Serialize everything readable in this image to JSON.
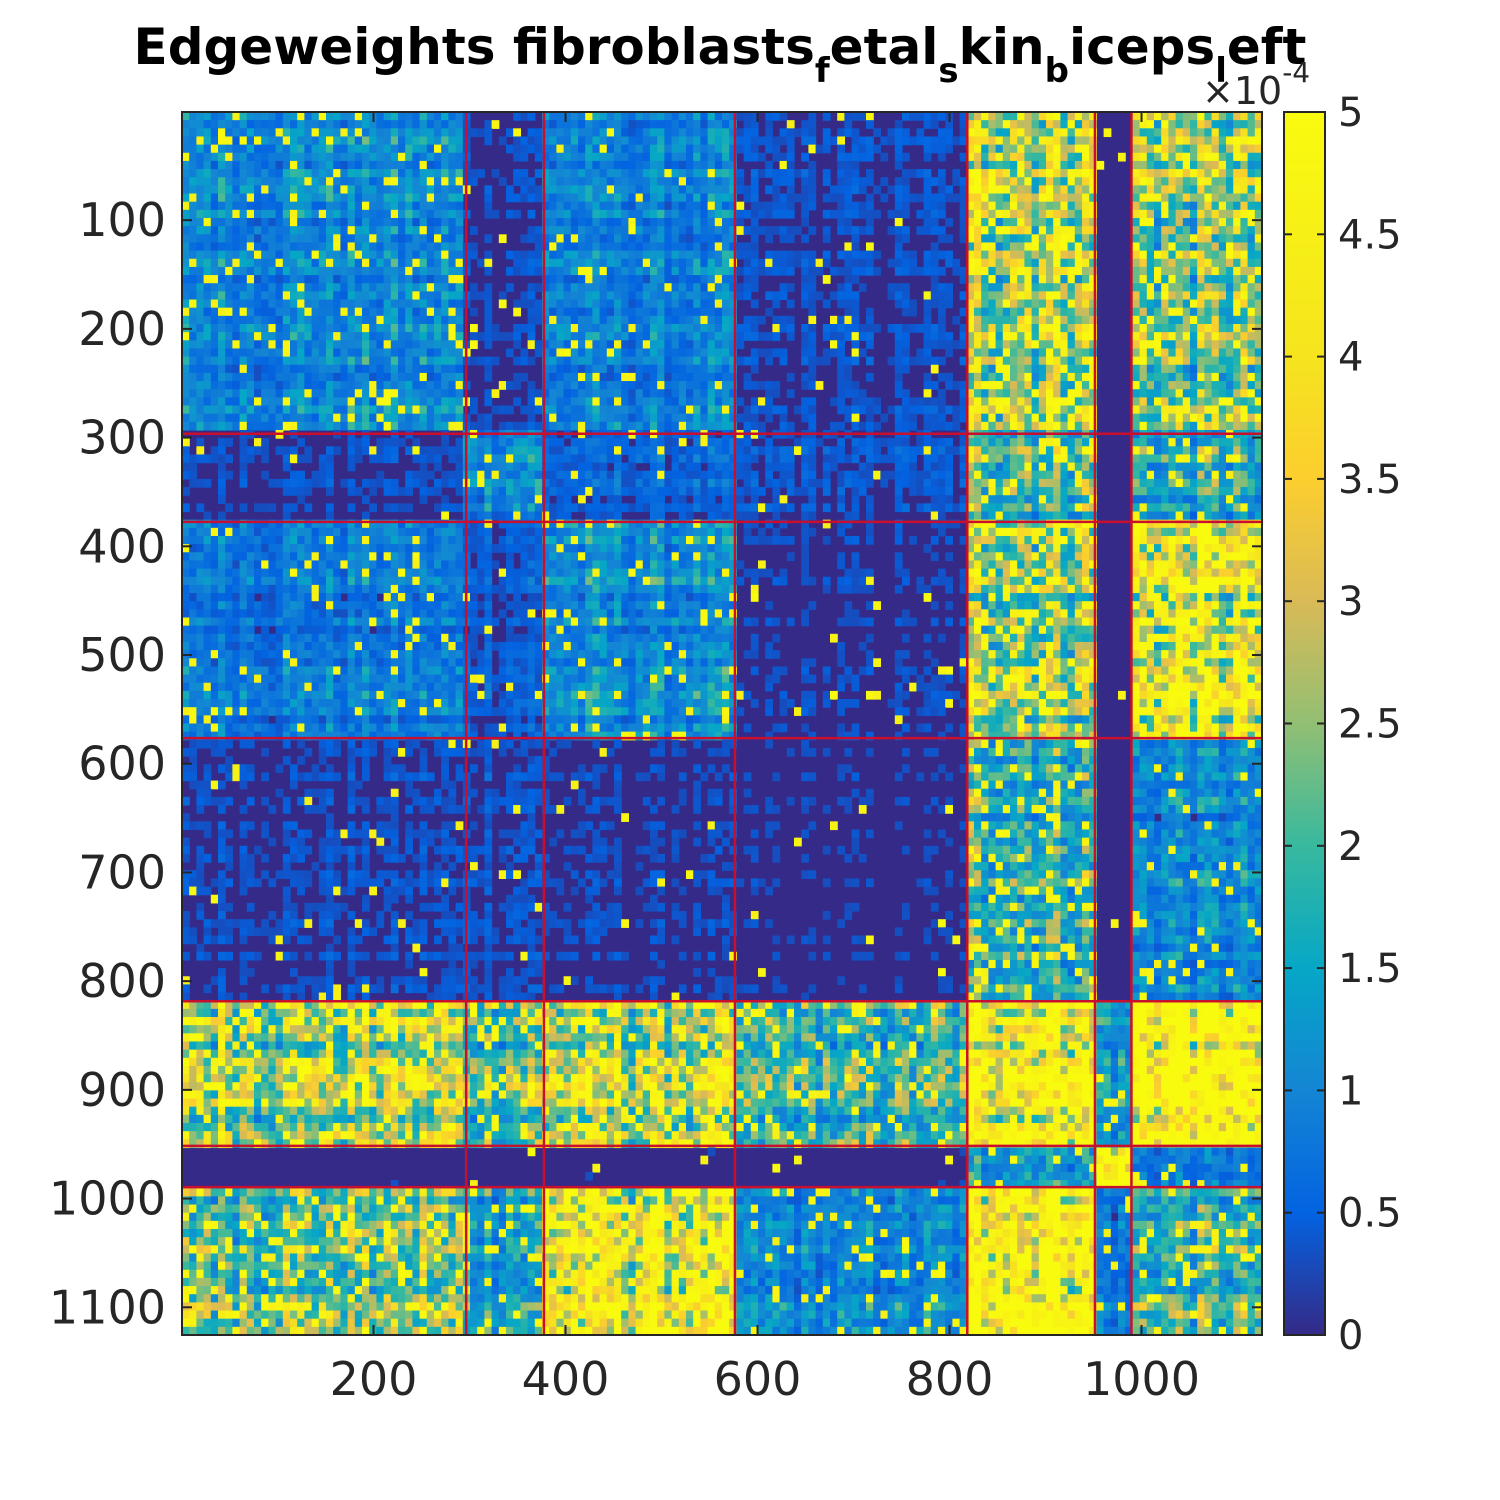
{
  "chart_data": {
    "type": "heatmap",
    "title": {
      "parts": [
        {
          "text": "Edgeweights fibroblasts",
          "sub": false
        },
        {
          "text": "f",
          "sub": true
        },
        {
          "text": "etal",
          "sub": false
        },
        {
          "text": "s",
          "sub": true
        },
        {
          "text": "kin",
          "sub": false
        },
        {
          "text": "b",
          "sub": true
        },
        {
          "text": "iceps",
          "sub": false
        },
        {
          "text": "l",
          "sub": true
        },
        {
          "text": "eft",
          "sub": false
        }
      ]
    },
    "matrix_size": 1125,
    "x_ticks": [
      200,
      400,
      600,
      800,
      1000
    ],
    "y_ticks": [
      100,
      200,
      300,
      400,
      500,
      600,
      700,
      800,
      900,
      1000,
      1100
    ],
    "colorbar": {
      "min": 0,
      "max": 5,
      "ticks": [
        0,
        0.5,
        1,
        1.5,
        2,
        2.5,
        3,
        3.5,
        4,
        4.5,
        5
      ],
      "tick_labels": [
        "0",
        "0.5",
        "1",
        "1.5",
        "2",
        "2.5",
        "3",
        "3.5",
        "4",
        "4.5",
        "5"
      ],
      "multiplier_text": "×10",
      "multiplier_exp": "-4",
      "colormap": "parula"
    },
    "colors": {
      "low": "#352a87",
      "mid": "#1f8fd0",
      "high": "#f9fb0e",
      "boundary": "#c8102e"
    },
    "block_boundaries": [
      296,
      377,
      576,
      818,
      951,
      989
    ],
    "block_intensity": [
      [
        0.2,
        0.06,
        0.17,
        0.06,
        0.55,
        0.03,
        0.45
      ],
      [
        0.06,
        0.22,
        0.1,
        0.07,
        0.4,
        0.03,
        0.3
      ],
      [
        0.17,
        0.1,
        0.22,
        0.05,
        0.55,
        0.03,
        0.7
      ],
      [
        0.06,
        0.07,
        0.05,
        0.04,
        0.35,
        0.03,
        0.2
      ],
      [
        0.55,
        0.4,
        0.55,
        0.35,
        0.85,
        0.25,
        0.95
      ],
      [
        0.03,
        0.03,
        0.03,
        0.03,
        0.25,
        1.0,
        0.15
      ],
      [
        0.45,
        0.3,
        0.7,
        0.2,
        0.95,
        0.15,
        0.35
      ]
    ]
  }
}
